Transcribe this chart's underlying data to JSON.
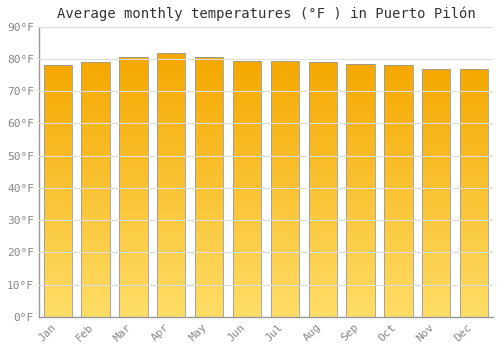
{
  "title": "Average monthly temperatures (°F ) in Puerto Pilón",
  "months": [
    "Jan",
    "Feb",
    "Mar",
    "Apr",
    "May",
    "Jun",
    "Jul",
    "Aug",
    "Sep",
    "Oct",
    "Nov",
    "Dec"
  ],
  "values": [
    78,
    79,
    80.5,
    82,
    80.5,
    79.5,
    79.5,
    79,
    78.5,
    78,
    77,
    77
  ],
  "ylim": [
    0,
    90
  ],
  "yticks": [
    0,
    10,
    20,
    30,
    40,
    50,
    60,
    70,
    80,
    90
  ],
  "bar_color_top": "#F5A800",
  "bar_color_bottom": "#FFDD66",
  "bar_color_mid": "#FFC040",
  "edge_color": "#888888",
  "background_color": "#FFFFFF",
  "plot_bg_color": "#FFFFFF",
  "grid_color": "#DDDDDD",
  "title_fontsize": 10,
  "tick_fontsize": 8,
  "tick_color": "#888888",
  "bar_width": 0.75
}
